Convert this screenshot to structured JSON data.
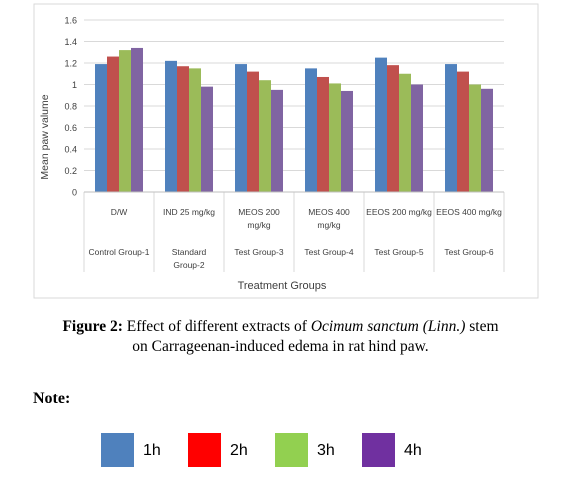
{
  "chart_data": {
    "type": "bar",
    "ylabel": "Mean paw valume",
    "xlabel": "Treatment Groups",
    "ylim": [
      0,
      1.6
    ],
    "yticks": [
      "0",
      "0.2",
      "0.4",
      "0.6",
      "0.8",
      "1",
      "1.2",
      "1.4",
      "1.6"
    ],
    "grid": true,
    "categories": [
      {
        "line1": "D/W",
        "line2": "",
        "group1": "Control Group-1",
        "group2": ""
      },
      {
        "line1": "IND 25 mg/kg",
        "line2": "",
        "group1": "Standard",
        "group2": "Group-2"
      },
      {
        "line1": "MEOS 200",
        "line2": "mg/kg",
        "group1": "Test Group-3",
        "group2": ""
      },
      {
        "line1": "MEOS 400",
        "line2": "mg/kg",
        "group1": "Test Group-4",
        "group2": ""
      },
      {
        "line1": "EEOS 200 mg/kg",
        "line2": "",
        "group1": "Test Group-5",
        "group2": ""
      },
      {
        "line1": "EEOS 400 mg/kg",
        "line2": "",
        "group1": "Test Group-6",
        "group2": ""
      }
    ],
    "series": [
      {
        "name": "1h",
        "color": "#4F81BD",
        "values": [
          1.19,
          1.22,
          1.19,
          1.15,
          1.25,
          1.19
        ]
      },
      {
        "name": "2h",
        "color": "#C0504D",
        "values": [
          1.26,
          1.17,
          1.12,
          1.07,
          1.18,
          1.12
        ]
      },
      {
        "name": "3h",
        "color": "#9BBB59",
        "values": [
          1.32,
          1.15,
          1.04,
          1.01,
          1.1,
          1.0
        ]
      },
      {
        "name": "4h",
        "color": "#8064A2",
        "values": [
          1.34,
          0.98,
          0.95,
          0.94,
          1.0,
          0.96
        ]
      }
    ]
  },
  "caption": {
    "label": "Figure 2:",
    "text_before": " Effect of different extracts of ",
    "italic": "Ocimum sanctum (Linn.)",
    "text_after": " stem",
    "line2": "on Carrageenan-induced edema in rat hind paw."
  },
  "note": "Note:",
  "legend": [
    {
      "label": "1h",
      "color": "#4F81BD"
    },
    {
      "label": "2h",
      "color": "#FF0000"
    },
    {
      "label": "3h",
      "color": "#92D050"
    },
    {
      "label": "4h",
      "color": "#7030A0"
    }
  ]
}
